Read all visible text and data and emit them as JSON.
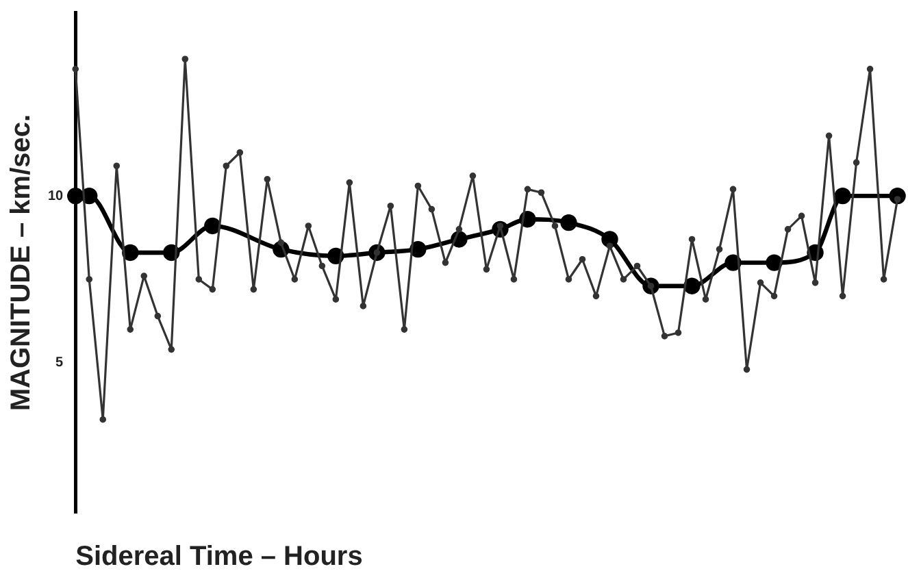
{
  "chart_data": {
    "type": "line",
    "xlabel": "Sidereal Time – Hours",
    "ylabel": "MAGNITUDE – km/sec.",
    "categories": [
      null,
      null,
      null,
      null,
      null,
      null,
      null,
      null,
      null,
      null,
      null,
      null,
      null,
      null,
      null,
      null,
      null,
      null,
      null,
      null,
      null,
      null,
      null,
      null,
      null,
      null,
      null,
      null,
      null,
      null,
      null,
      null,
      null,
      null,
      null,
      null,
      null,
      null,
      null,
      null,
      null,
      null,
      null,
      null,
      null,
      null,
      null,
      null,
      null,
      null,
      null,
      null,
      null,
      null,
      null,
      null,
      null,
      null,
      null,
      null,
      null
    ],
    "series": [
      {
        "color": "#333333",
        "values": [
          13.8,
          7.5,
          3.3,
          10.9,
          6.0,
          7.6,
          6.4,
          5.4,
          14.1,
          7.5,
          7.2,
          10.9,
          11.3,
          7.2,
          10.5,
          8.6,
          7.5,
          9.1,
          7.9,
          6.9,
          10.4,
          6.7,
          8.3,
          9.7,
          6.0,
          10.3,
          9.6,
          8.0,
          9.0,
          10.6,
          7.8,
          9.1,
          7.5,
          10.2,
          10.1,
          9.1,
          7.5,
          8.1,
          7.0,
          8.5,
          7.5,
          7.9,
          7.3,
          5.8,
          5.9,
          8.7,
          6.9,
          8.4,
          10.2,
          4.8,
          7.4,
          7.0,
          9.0,
          9.4,
          7.4,
          11.8,
          7.0,
          11.0,
          13.8,
          7.5,
          9.9
        ]
      },
      {
        "color": "#000000",
        "values": [
          10.0,
          10.0,
          null,
          null,
          8.3,
          null,
          null,
          8.3,
          null,
          null,
          9.1,
          null,
          null,
          null,
          null,
          8.4,
          null,
          null,
          null,
          8.2,
          null,
          null,
          8.3,
          null,
          null,
          8.4,
          null,
          null,
          8.7,
          null,
          null,
          9.0,
          null,
          9.3,
          null,
          null,
          9.2,
          null,
          null,
          8.7,
          null,
          null,
          7.3,
          null,
          null,
          7.3,
          null,
          null,
          8.0,
          null,
          null,
          8.0,
          null,
          null,
          8.3,
          null,
          10.0,
          null,
          null,
          null,
          10.0
        ]
      }
    ],
    "ylim": [
      0.5,
      15.5
    ],
    "yticks": [
      5,
      10
    ],
    "grid": false,
    "legend": false,
    "marker": "circle"
  }
}
